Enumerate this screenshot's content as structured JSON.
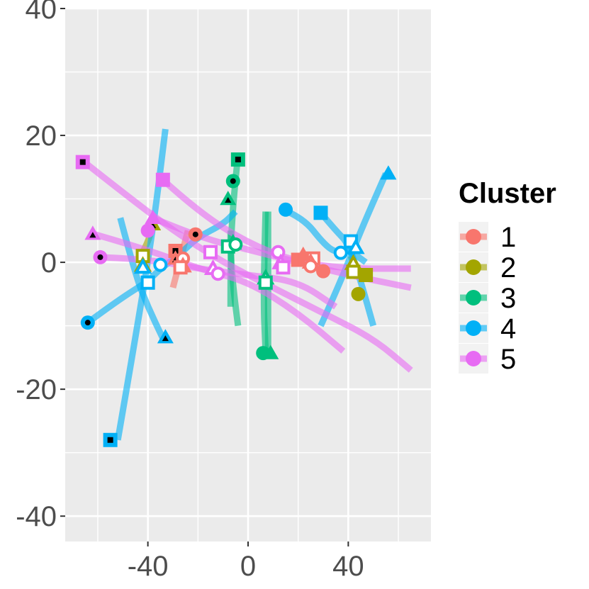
{
  "chart_data": {
    "type": "scatter",
    "title": "",
    "xlabel": "",
    "ylabel": "",
    "xlim": [
      -73,
      73
    ],
    "ylim": [
      -44,
      40
    ],
    "x_ticks": [
      -40,
      0,
      40
    ],
    "y_ticks": [
      40,
      20,
      0,
      -20,
      -40
    ],
    "x_tick_labels": [
      "-40",
      "0",
      "40"
    ],
    "y_tick_labels": [
      "40",
      "20",
      "0",
      "-20",
      "-40"
    ],
    "grid": true,
    "legend": {
      "title": "Cluster",
      "placement": "right",
      "entries": [
        {
          "label": "1",
          "color": "#F8766D"
        },
        {
          "label": "2",
          "color": "#A3A500"
        },
        {
          "label": "3",
          "color": "#00BF7D"
        },
        {
          "label": "4",
          "color": "#00B0F6"
        },
        {
          "label": "5",
          "color": "#E76BF3"
        }
      ]
    },
    "series": [
      {
        "cluster": "1",
        "color": "#F8766D",
        "curves": [
          [
            [
              -30,
              -4
            ],
            [
              -28,
              -1
            ],
            [
              -26,
              2
            ],
            [
              -24,
              5
            ]
          ]
        ],
        "points": [
          {
            "x": -29,
            "y": 1.8,
            "shape": "square",
            "style": "filled-dot"
          },
          {
            "x": -29,
            "y": 0.6,
            "shape": "triangle",
            "style": "filled-dot"
          },
          {
            "x": -21,
            "y": 4.4,
            "shape": "circle",
            "style": "filled-dot"
          },
          {
            "x": -26,
            "y": 0.6,
            "shape": "circle",
            "style": "hollow"
          },
          {
            "x": -26,
            "y": -0.6,
            "shape": "triangle",
            "style": "hollow"
          },
          {
            "x": -27,
            "y": -0.8,
            "shape": "square",
            "style": "hollow"
          },
          {
            "x": 20,
            "y": 0.4,
            "shape": "square",
            "style": "filled"
          },
          {
            "x": 22,
            "y": 1.2,
            "shape": "triangle",
            "style": "filled"
          },
          {
            "x": 26,
            "y": 0.6,
            "shape": "square",
            "style": "hollow"
          },
          {
            "x": 25,
            "y": 0.0,
            "shape": "triangle",
            "style": "hollow"
          },
          {
            "x": 25,
            "y": -0.6,
            "shape": "circle",
            "style": "hollow"
          },
          {
            "x": 30,
            "y": -1.4,
            "shape": "circle",
            "style": "filled"
          }
        ]
      },
      {
        "cluster": "2",
        "color": "#A3A500",
        "curves": [
          [
            [
              -43,
              1
            ],
            [
              -40,
              3
            ],
            [
              -38,
              6
            ]
          ],
          [
            [
              41,
              1
            ],
            [
              43,
              -1.5
            ],
            [
              46,
              -2
            ]
          ]
        ],
        "points": [
          {
            "x": -42,
            "y": 1.0,
            "shape": "square",
            "style": "hollow"
          },
          {
            "x": -42,
            "y": -0.5,
            "shape": "triangle",
            "style": "hollow"
          },
          {
            "x": -38,
            "y": 6.0,
            "shape": "triangle",
            "style": "filled-dot"
          },
          {
            "x": 42,
            "y": -0.2,
            "shape": "triangle",
            "style": "hollow"
          },
          {
            "x": 42,
            "y": -1.5,
            "shape": "square",
            "style": "hollow"
          },
          {
            "x": 47,
            "y": -2.0,
            "shape": "square",
            "style": "filled"
          },
          {
            "x": 44,
            "y": -5.0,
            "shape": "circle",
            "style": "filled"
          }
        ]
      },
      {
        "cluster": "3",
        "color": "#00BF7D",
        "curves": [
          [
            [
              -7,
              -7
            ],
            [
              -7,
              2
            ],
            [
              -6,
              9
            ],
            [
              -4,
              17
            ]
          ],
          [
            [
              -4,
              -10
            ],
            [
              -6,
              -4
            ],
            [
              -7,
              2
            ],
            [
              -7,
              5
            ]
          ],
          [
            [
              7,
              8
            ],
            [
              6,
              -5
            ],
            [
              7,
              -14
            ]
          ],
          [
            [
              8,
              8
            ],
            [
              8,
              -5
            ],
            [
              8,
              -15
            ]
          ]
        ],
        "points": [
          {
            "x": -4,
            "y": 16.2,
            "shape": "square",
            "style": "filled-dot"
          },
          {
            "x": -6,
            "y": 12.8,
            "shape": "circle",
            "style": "filled-dot"
          },
          {
            "x": -8,
            "y": 10.0,
            "shape": "triangle",
            "style": "filled-dot"
          },
          {
            "x": -6,
            "y": 3.0,
            "shape": "triangle",
            "style": "hollow"
          },
          {
            "x": -8,
            "y": 2.5,
            "shape": "square",
            "style": "hollow"
          },
          {
            "x": -5,
            "y": 2.8,
            "shape": "circle",
            "style": "hollow"
          },
          {
            "x": 7,
            "y": -2.5,
            "shape": "triangle",
            "style": "hollow"
          },
          {
            "x": 7,
            "y": -3.2,
            "shape": "square",
            "style": "hollow"
          },
          {
            "x": 6,
            "y": -14.3,
            "shape": "circle",
            "style": "filled"
          },
          {
            "x": 9,
            "y": -14.3,
            "shape": "triangle",
            "style": "filled"
          }
        ]
      },
      {
        "cluster": "4",
        "color": "#00B0F6",
        "curves": [
          [
            [
              -52,
              -28
            ],
            [
              -45,
              -12
            ],
            [
              -38,
              5
            ],
            [
              -33,
              21
            ]
          ],
          [
            [
              -64,
              -9.5
            ],
            [
              -52,
              -6
            ],
            [
              -40,
              -3
            ],
            [
              -35,
              -1
            ],
            [
              -28,
              1
            ],
            [
              -20,
              4
            ],
            [
              -10,
              6
            ],
            [
              -5,
              8
            ]
          ],
          [
            [
              -51,
              7
            ],
            [
              -45,
              -2
            ],
            [
              -40,
              -7
            ],
            [
              -34,
              -12
            ]
          ],
          [
            [
              14,
              8.3
            ],
            [
              22,
              7
            ],
            [
              30,
              3
            ],
            [
              35,
              1.5
            ],
            [
              40,
              2
            ],
            [
              47,
              0
            ]
          ],
          [
            [
              29,
              7.8
            ],
            [
              35,
              5
            ],
            [
              40,
              3
            ],
            [
              45,
              -3
            ],
            [
              50,
              -10
            ]
          ],
          [
            [
              29,
              -10
            ],
            [
              37,
              -3
            ],
            [
              45,
              5
            ],
            [
              55,
              14
            ]
          ]
        ],
        "points": [
          {
            "x": -55,
            "y": -28.0,
            "shape": "square",
            "style": "filled-dot"
          },
          {
            "x": -64,
            "y": -9.5,
            "shape": "circle",
            "style": "filled-dot"
          },
          {
            "x": -33,
            "y": -11.8,
            "shape": "triangle",
            "style": "filled-dot"
          },
          {
            "x": -42,
            "y": -0.8,
            "shape": "triangle",
            "style": "hollow"
          },
          {
            "x": -40,
            "y": -3.2,
            "shape": "square",
            "style": "hollow"
          },
          {
            "x": -35,
            "y": -0.4,
            "shape": "circle",
            "style": "hollow"
          },
          {
            "x": 15,
            "y": 8.3,
            "shape": "circle",
            "style": "filled"
          },
          {
            "x": 29,
            "y": 7.8,
            "shape": "square",
            "style": "filled"
          },
          {
            "x": 41,
            "y": 3.3,
            "shape": "square",
            "style": "hollow"
          },
          {
            "x": 43,
            "y": 2.3,
            "shape": "triangle",
            "style": "hollow"
          },
          {
            "x": 37,
            "y": 1.5,
            "shape": "circle",
            "style": "hollow"
          },
          {
            "x": 56,
            "y": 14.0,
            "shape": "triangle",
            "style": "filled"
          }
        ]
      },
      {
        "cluster": "5",
        "color": "#E76BF3",
        "curves": [
          [
            [
              -66,
              16
            ],
            [
              -50,
              11
            ],
            [
              -30,
              5
            ],
            [
              -10,
              0
            ],
            [
              10,
              -4
            ],
            [
              30,
              -8
            ],
            [
              50,
              -12
            ],
            [
              65,
              -17
            ]
          ],
          [
            [
              -34,
              13
            ],
            [
              -20,
              8
            ],
            [
              0,
              3
            ],
            [
              20,
              0
            ],
            [
              40,
              -1
            ],
            [
              65,
              -1
            ]
          ],
          [
            [
              -38,
              7
            ],
            [
              -20,
              4
            ],
            [
              0,
              2
            ],
            [
              20,
              0
            ],
            [
              40,
              -2
            ],
            [
              65,
              -4
            ]
          ],
          [
            [
              -62,
              4.5
            ],
            [
              -40,
              2
            ],
            [
              -20,
              -1
            ],
            [
              0,
              -3
            ],
            [
              20,
              -8
            ],
            [
              38,
              -14
            ]
          ],
          [
            [
              -59,
              0.8
            ],
            [
              -40,
              0.5
            ],
            [
              -20,
              -1
            ],
            [
              0,
              -2
            ],
            [
              20,
              -3
            ],
            [
              35,
              -7
            ]
          ]
        ],
        "points": [
          {
            "x": -66,
            "y": 15.8,
            "shape": "square",
            "style": "filled-dot"
          },
          {
            "x": -62,
            "y": 4.5,
            "shape": "triangle",
            "style": "filled-dot"
          },
          {
            "x": -59,
            "y": 0.8,
            "shape": "circle",
            "style": "filled-dot"
          },
          {
            "x": -34,
            "y": 13.0,
            "shape": "square",
            "style": "filled"
          },
          {
            "x": -38,
            "y": 7.0,
            "shape": "triangle",
            "style": "filled"
          },
          {
            "x": -40,
            "y": 5.0,
            "shape": "circle",
            "style": "filled"
          },
          {
            "x": -15,
            "y": 1.6,
            "shape": "square",
            "style": "hollow"
          },
          {
            "x": -14,
            "y": -1.0,
            "shape": "triangle",
            "style": "hollow"
          },
          {
            "x": -12,
            "y": -1.8,
            "shape": "circle",
            "style": "hollow"
          },
          {
            "x": 12,
            "y": 1.6,
            "shape": "circle",
            "style": "hollow"
          },
          {
            "x": 13,
            "y": -0.1,
            "shape": "triangle",
            "style": "hollow"
          },
          {
            "x": 14,
            "y": -0.8,
            "shape": "square",
            "style": "hollow"
          }
        ]
      }
    ]
  }
}
